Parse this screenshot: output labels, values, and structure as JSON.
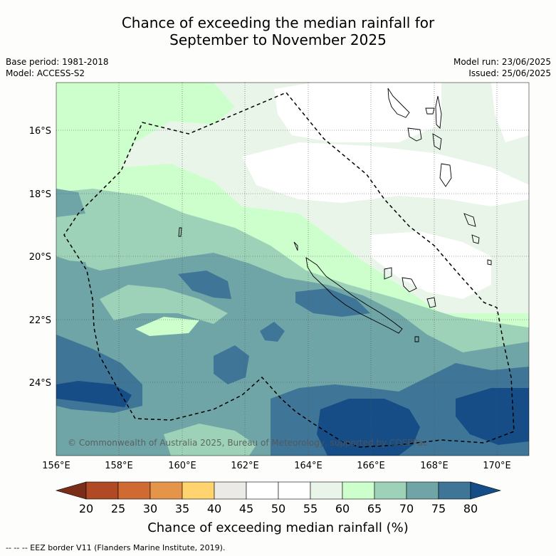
{
  "title_line1": "Chance of exceeding the median rainfall for",
  "title_line2": "September to November 2025",
  "base_period": "Base period: 1981-2018",
  "model": "Model: ACCESS-S2",
  "model_run": "Model run: 23/06/2025",
  "issued": "Issued: 25/06/2025",
  "copyright": "© Commonwealth of Australia 2025, Bureau of Meteorology, supported by COSPPac",
  "x_ticks": [
    "156°E",
    "158°E",
    "160°E",
    "162°E",
    "164°E",
    "166°E",
    "168°E",
    "170°E"
  ],
  "y_ticks": [
    "16°S",
    "18°S",
    "20°S",
    "22°S",
    "24°S"
  ],
  "colorbar": {
    "title": "Chance of exceeding median rainfall (%)",
    "ticks": [
      "20",
      "25",
      "30",
      "35",
      "40",
      "45",
      "50",
      "55",
      "60",
      "65",
      "70",
      "75",
      "80"
    ],
    "colors": [
      "#7a2e1a",
      "#b04a24",
      "#cf6a33",
      "#e4954a",
      "#ffd36e",
      "#ebeae6",
      "#ffffff",
      "#ffffff",
      "#eaf5ea",
      "#ccffcc",
      "#9dd2b8",
      "#6fa5a6",
      "#3f7698",
      "#164d86"
    ]
  },
  "eez_note": "--  --  -- EEZ border V11 (Flanders Marine Institute, 2019)."
}
